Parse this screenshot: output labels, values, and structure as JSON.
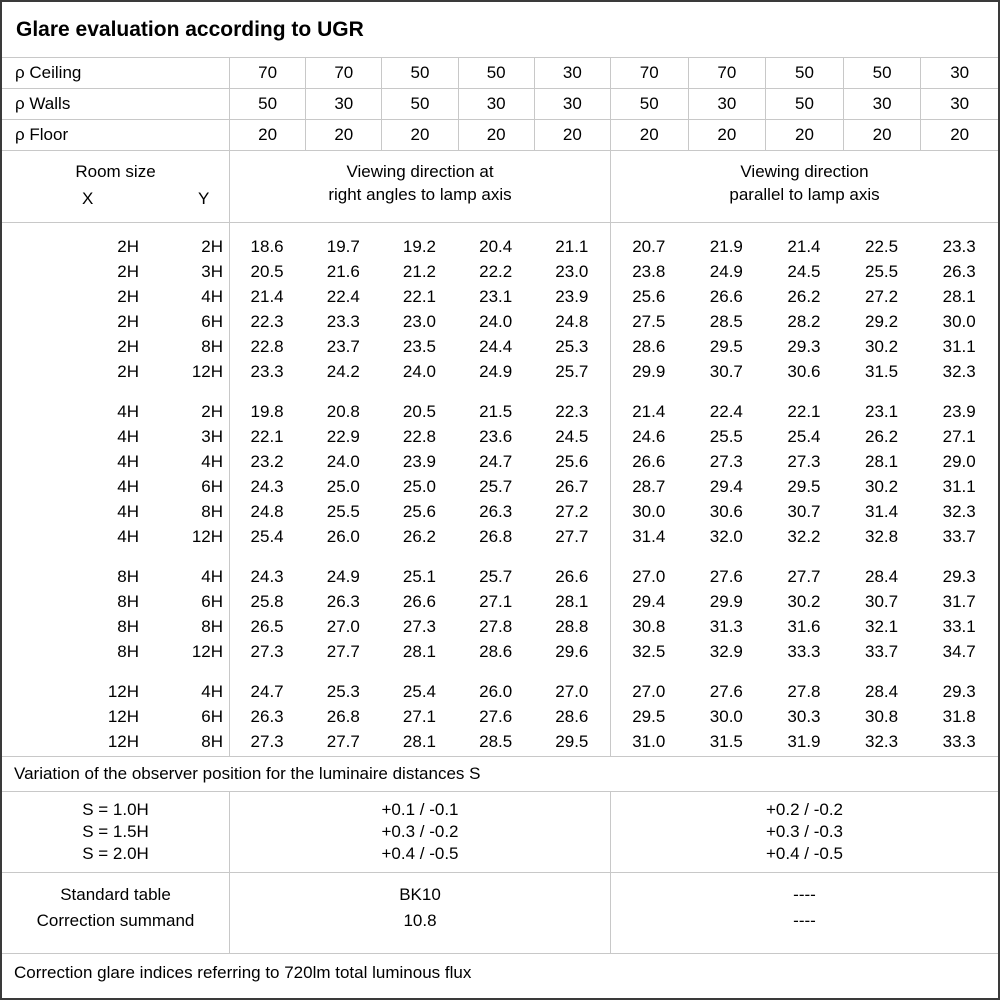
{
  "title": "Glare evaluation according to UGR",
  "reflectances": {
    "rows": [
      {
        "label": "ρ Ceiling",
        "values": [
          "70",
          "70",
          "50",
          "50",
          "30",
          "70",
          "70",
          "50",
          "50",
          "30"
        ]
      },
      {
        "label": "ρ Walls",
        "values": [
          "50",
          "30",
          "50",
          "30",
          "30",
          "50",
          "30",
          "50",
          "30",
          "30"
        ]
      },
      {
        "label": "ρ Floor",
        "values": [
          "20",
          "20",
          "20",
          "20",
          "20",
          "20",
          "20",
          "20",
          "20",
          "20"
        ]
      }
    ]
  },
  "header": {
    "room_size_label": "Room size",
    "x_label": "X",
    "y_label": "Y",
    "group_right_angles": [
      "Viewing direction at",
      "right angles to lamp axis"
    ],
    "group_parallel": [
      "Viewing direction",
      "parallel to lamp axis"
    ]
  },
  "ugr_table": {
    "groups": [
      {
        "rows": [
          {
            "x": "2H",
            "y": "2H",
            "values": [
              "18.6",
              "19.7",
              "19.2",
              "20.4",
              "21.1",
              "20.7",
              "21.9",
              "21.4",
              "22.5",
              "23.3"
            ]
          },
          {
            "x": "2H",
            "y": "3H",
            "values": [
              "20.5",
              "21.6",
              "21.2",
              "22.2",
              "23.0",
              "23.8",
              "24.9",
              "24.5",
              "25.5",
              "26.3"
            ]
          },
          {
            "x": "2H",
            "y": "4H",
            "values": [
              "21.4",
              "22.4",
              "22.1",
              "23.1",
              "23.9",
              "25.6",
              "26.6",
              "26.2",
              "27.2",
              "28.1"
            ]
          },
          {
            "x": "2H",
            "y": "6H",
            "values": [
              "22.3",
              "23.3",
              "23.0",
              "24.0",
              "24.8",
              "27.5",
              "28.5",
              "28.2",
              "29.2",
              "30.0"
            ]
          },
          {
            "x": "2H",
            "y": "8H",
            "values": [
              "22.8",
              "23.7",
              "23.5",
              "24.4",
              "25.3",
              "28.6",
              "29.5",
              "29.3",
              "30.2",
              "31.1"
            ]
          },
          {
            "x": "2H",
            "y": "12H",
            "values": [
              "23.3",
              "24.2",
              "24.0",
              "24.9",
              "25.7",
              "29.9",
              "30.7",
              "30.6",
              "31.5",
              "32.3"
            ]
          }
        ]
      },
      {
        "rows": [
          {
            "x": "4H",
            "y": "2H",
            "values": [
              "19.8",
              "20.8",
              "20.5",
              "21.5",
              "22.3",
              "21.4",
              "22.4",
              "22.1",
              "23.1",
              "23.9"
            ]
          },
          {
            "x": "4H",
            "y": "3H",
            "values": [
              "22.1",
              "22.9",
              "22.8",
              "23.6",
              "24.5",
              "24.6",
              "25.5",
              "25.4",
              "26.2",
              "27.1"
            ]
          },
          {
            "x": "4H",
            "y": "4H",
            "values": [
              "23.2",
              "24.0",
              "23.9",
              "24.7",
              "25.6",
              "26.6",
              "27.3",
              "27.3",
              "28.1",
              "29.0"
            ]
          },
          {
            "x": "4H",
            "y": "6H",
            "values": [
              "24.3",
              "25.0",
              "25.0",
              "25.7",
              "26.7",
              "28.7",
              "29.4",
              "29.5",
              "30.2",
              "31.1"
            ]
          },
          {
            "x": "4H",
            "y": "8H",
            "values": [
              "24.8",
              "25.5",
              "25.6",
              "26.3",
              "27.2",
              "30.0",
              "30.6",
              "30.7",
              "31.4",
              "32.3"
            ]
          },
          {
            "x": "4H",
            "y": "12H",
            "values": [
              "25.4",
              "26.0",
              "26.2",
              "26.8",
              "27.7",
              "31.4",
              "32.0",
              "32.2",
              "32.8",
              "33.7"
            ]
          }
        ]
      },
      {
        "rows": [
          {
            "x": "8H",
            "y": "4H",
            "values": [
              "24.3",
              "24.9",
              "25.1",
              "25.7",
              "26.6",
              "27.0",
              "27.6",
              "27.7",
              "28.4",
              "29.3"
            ]
          },
          {
            "x": "8H",
            "y": "6H",
            "values": [
              "25.8",
              "26.3",
              "26.6",
              "27.1",
              "28.1",
              "29.4",
              "29.9",
              "30.2",
              "30.7",
              "31.7"
            ]
          },
          {
            "x": "8H",
            "y": "8H",
            "values": [
              "26.5",
              "27.0",
              "27.3",
              "27.8",
              "28.8",
              "30.8",
              "31.3",
              "31.6",
              "32.1",
              "33.1"
            ]
          },
          {
            "x": "8H",
            "y": "12H",
            "values": [
              "27.3",
              "27.7",
              "28.1",
              "28.6",
              "29.6",
              "32.5",
              "32.9",
              "33.3",
              "33.7",
              "34.7"
            ]
          }
        ]
      },
      {
        "rows": [
          {
            "x": "12H",
            "y": "4H",
            "values": [
              "24.7",
              "25.3",
              "25.4",
              "26.0",
              "27.0",
              "27.0",
              "27.6",
              "27.8",
              "28.4",
              "29.3"
            ]
          },
          {
            "x": "12H",
            "y": "6H",
            "values": [
              "26.3",
              "26.8",
              "27.1",
              "27.6",
              "28.6",
              "29.5",
              "30.0",
              "30.3",
              "30.8",
              "31.8"
            ]
          },
          {
            "x": "12H",
            "y": "8H",
            "values": [
              "27.3",
              "27.7",
              "28.1",
              "28.5",
              "29.5",
              "31.0",
              "31.5",
              "31.9",
              "32.3",
              "33.3"
            ]
          }
        ]
      }
    ]
  },
  "variation": {
    "note": "Variation of the observer position for the luminaire distances S",
    "rows": [
      {
        "label": "S = 1.0H",
        "right_angles": "+0.1 / -0.1",
        "parallel": "+0.2 / -0.2"
      },
      {
        "label": "S = 1.5H",
        "right_angles": "+0.3 / -0.2",
        "parallel": "+0.3 / -0.3"
      },
      {
        "label": "S = 2.0H",
        "right_angles": "+0.4 / -0.5",
        "parallel": "+0.4 / -0.5"
      }
    ]
  },
  "summary": {
    "rows": [
      {
        "label": "Standard table",
        "right_angles": "BK10",
        "parallel": "----"
      },
      {
        "label": "Correction summand",
        "right_angles": "10.8",
        "parallel": "----"
      }
    ]
  },
  "footer_note": "Correction glare indices referring to 720lm total luminous flux",
  "colors": {
    "background": "#ffffff",
    "text": "#000000",
    "grid_line": "#c8c8c8",
    "outer_border": "#3a3a3a"
  }
}
